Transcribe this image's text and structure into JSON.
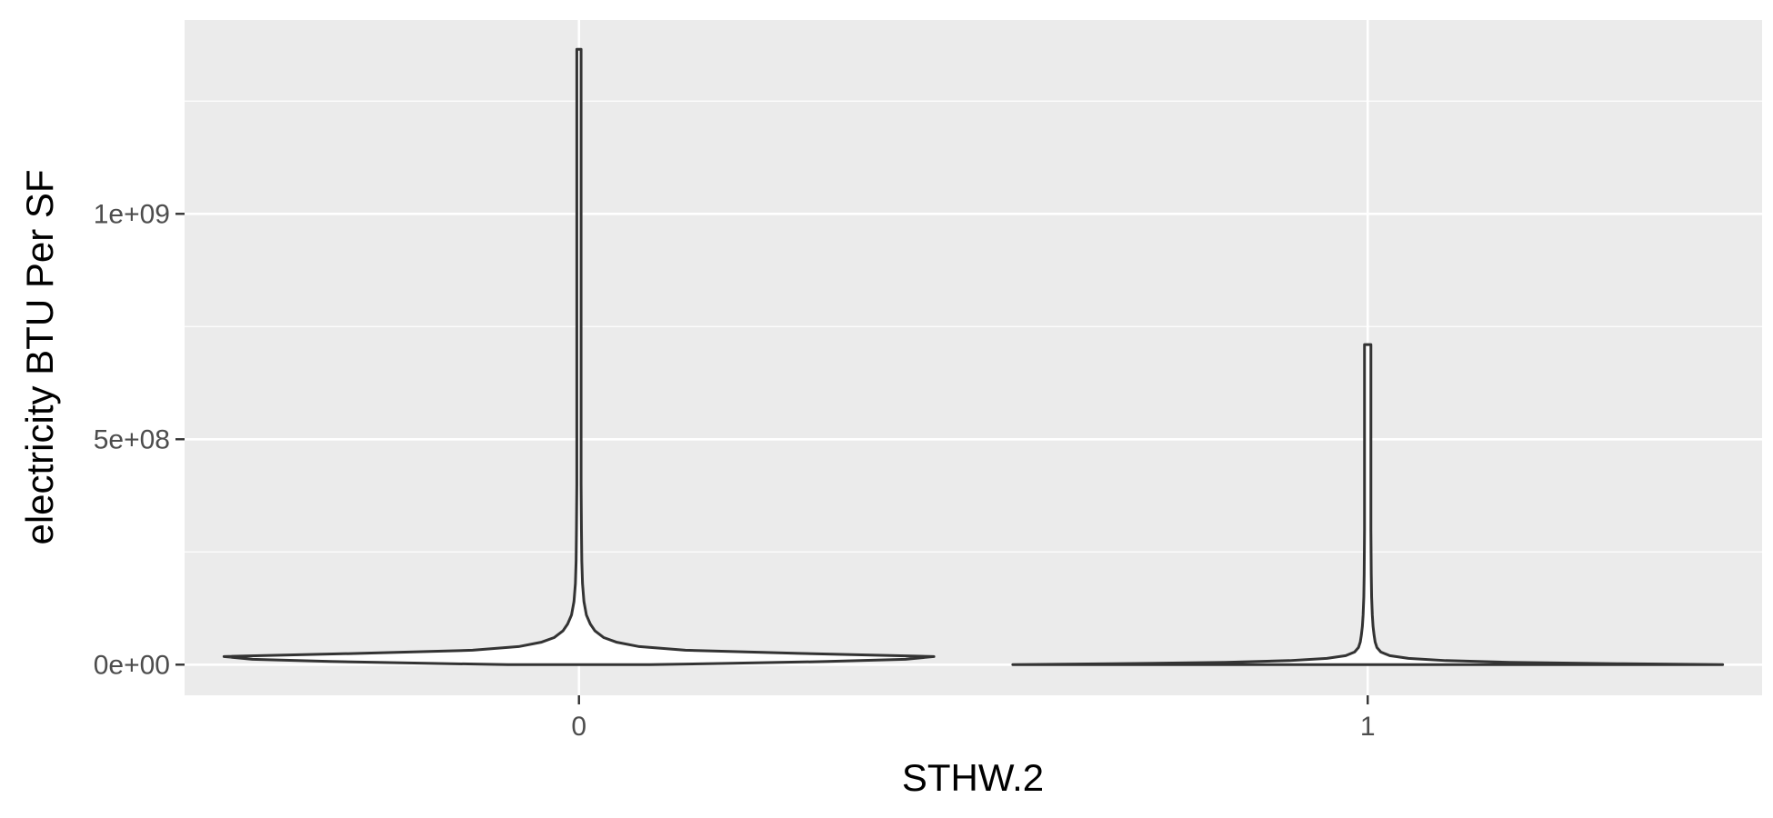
{
  "chart_data": {
    "type": "violin",
    "title": "",
    "xlabel": "STHW.2",
    "ylabel": "electricity BTU Per SF",
    "categories": [
      "0",
      "1"
    ],
    "ylim": [
      -68000000,
      1430000000
    ],
    "y_ticks": [
      {
        "value": 0,
        "label": "0e+00"
      },
      {
        "value": 500000000,
        "label": "5e+08"
      },
      {
        "value": 1000000000,
        "label": "1e+09"
      }
    ],
    "y_minor_ticks": [
      250000000,
      750000000,
      1250000000
    ],
    "grid": true,
    "series": [
      {
        "category": "0",
        "max": 1365000000,
        "profile": [
          [
            0,
            0.2
          ],
          [
            3000000,
            0.43
          ],
          [
            7000000,
            0.7
          ],
          [
            12000000,
            0.92
          ],
          [
            18000000,
            1.0
          ],
          [
            25000000,
            0.62
          ],
          [
            32000000,
            0.3
          ],
          [
            40000000,
            0.17
          ],
          [
            50000000,
            0.105
          ],
          [
            60000000,
            0.07
          ],
          [
            75000000,
            0.045
          ],
          [
            90000000,
            0.032
          ],
          [
            110000000,
            0.021
          ],
          [
            140000000,
            0.014
          ],
          [
            180000000,
            0.01
          ],
          [
            230000000,
            0.008
          ],
          [
            300000000,
            0.007
          ],
          [
            400000000,
            0.006
          ],
          [
            600000000,
            0.006
          ],
          [
            900000000,
            0.006
          ],
          [
            1365000000,
            0.006
          ]
        ]
      },
      {
        "category": "1",
        "max": 710000000,
        "profile": [
          [
            0,
            1.0
          ],
          [
            2000000,
            0.72
          ],
          [
            5000000,
            0.4
          ],
          [
            9000000,
            0.22
          ],
          [
            14000000,
            0.115
          ],
          [
            20000000,
            0.062
          ],
          [
            28000000,
            0.037
          ],
          [
            38000000,
            0.026
          ],
          [
            50000000,
            0.021
          ],
          [
            65000000,
            0.018
          ],
          [
            85000000,
            0.015
          ],
          [
            110000000,
            0.013
          ],
          [
            150000000,
            0.011
          ],
          [
            200000000,
            0.01
          ],
          [
            300000000,
            0.009
          ],
          [
            450000000,
            0.009
          ],
          [
            710000000,
            0.009
          ]
        ]
      }
    ]
  }
}
